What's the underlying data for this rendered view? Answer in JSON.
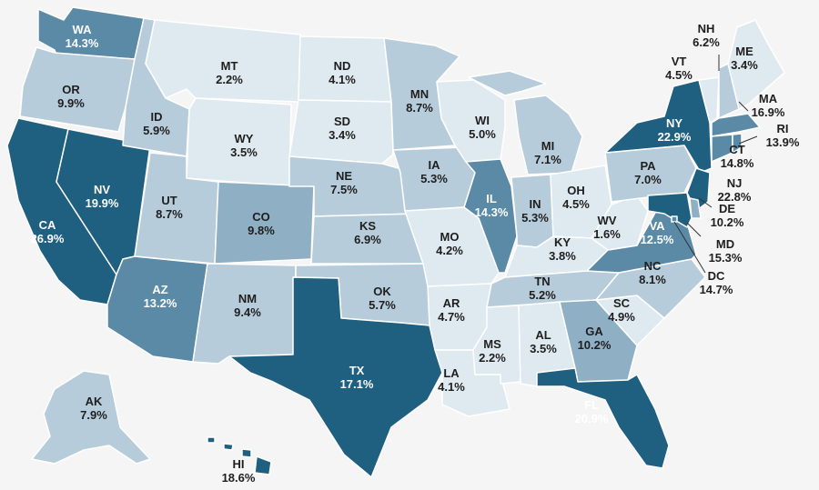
{
  "legend_colors": {
    "lightest": "#dfe9f0",
    "light": "#b7ccda",
    "medium": "#8fafc4",
    "mid_dark": "#5b8aa6",
    "dark": "#1f5f80"
  },
  "states": {
    "WA": {
      "abbr": "WA",
      "pct": "14.3%",
      "shade": "mid_dark"
    },
    "OR": {
      "abbr": "OR",
      "pct": "9.9%",
      "shade": "light"
    },
    "CA": {
      "abbr": "CA",
      "pct": "26.9%",
      "shade": "dark"
    },
    "NV": {
      "abbr": "NV",
      "pct": "19.9%",
      "shade": "dark"
    },
    "ID": {
      "abbr": "ID",
      "pct": "5.9%",
      "shade": "light"
    },
    "MT": {
      "abbr": "MT",
      "pct": "2.2%",
      "shade": "lightest"
    },
    "WY": {
      "abbr": "WY",
      "pct": "3.5%",
      "shade": "lightest"
    },
    "UT": {
      "abbr": "UT",
      "pct": "8.7%",
      "shade": "light"
    },
    "AZ": {
      "abbr": "AZ",
      "pct": "13.2%",
      "shade": "mid_dark"
    },
    "CO": {
      "abbr": "CO",
      "pct": "9.8%",
      "shade": "medium"
    },
    "NM": {
      "abbr": "NM",
      "pct": "9.4%",
      "shade": "light"
    },
    "ND": {
      "abbr": "ND",
      "pct": "4.1%",
      "shade": "lightest"
    },
    "SD": {
      "abbr": "SD",
      "pct": "3.4%",
      "shade": "lightest"
    },
    "NE": {
      "abbr": "NE",
      "pct": "7.5%",
      "shade": "light"
    },
    "KS": {
      "abbr": "KS",
      "pct": "6.9%",
      "shade": "light"
    },
    "OK": {
      "abbr": "OK",
      "pct": "5.7%",
      "shade": "light"
    },
    "TX": {
      "abbr": "TX",
      "pct": "17.1%",
      "shade": "dark"
    },
    "MN": {
      "abbr": "MN",
      "pct": "8.7%",
      "shade": "light"
    },
    "IA": {
      "abbr": "IA",
      "pct": "5.3%",
      "shade": "light"
    },
    "MO": {
      "abbr": "MO",
      "pct": "4.2%",
      "shade": "lightest"
    },
    "AR": {
      "abbr": "AR",
      "pct": "4.7%",
      "shade": "lightest"
    },
    "LA": {
      "abbr": "LA",
      "pct": "4.1%",
      "shade": "lightest"
    },
    "WI": {
      "abbr": "WI",
      "pct": "5.0%",
      "shade": "lightest"
    },
    "IL": {
      "abbr": "IL",
      "pct": "14.3%",
      "shade": "mid_dark"
    },
    "MI": {
      "abbr": "MI",
      "pct": "7.1%",
      "shade": "light"
    },
    "IN": {
      "abbr": "IN",
      "pct": "5.3%",
      "shade": "light"
    },
    "OH": {
      "abbr": "OH",
      "pct": "4.5%",
      "shade": "lightest"
    },
    "KY": {
      "abbr": "KY",
      "pct": "3.8%",
      "shade": "lightest"
    },
    "TN": {
      "abbr": "TN",
      "pct": "5.2%",
      "shade": "light"
    },
    "MS": {
      "abbr": "MS",
      "pct": "2.2%",
      "shade": "lightest"
    },
    "AL": {
      "abbr": "AL",
      "pct": "3.5%",
      "shade": "lightest"
    },
    "GA": {
      "abbr": "GA",
      "pct": "10.2%",
      "shade": "medium"
    },
    "FL": {
      "abbr": "FL",
      "pct": "20.9%",
      "shade": "dark"
    },
    "SC": {
      "abbr": "SC",
      "pct": "4.9%",
      "shade": "lightest"
    },
    "NC": {
      "abbr": "NC",
      "pct": "8.1%",
      "shade": "light"
    },
    "VA": {
      "abbr": "VA",
      "pct": "12.5%",
      "shade": "mid_dark"
    },
    "WV": {
      "abbr": "WV",
      "pct": "1.6%",
      "shade": "lightest"
    },
    "PA": {
      "abbr": "PA",
      "pct": "7.0%",
      "shade": "light"
    },
    "NY": {
      "abbr": "NY",
      "pct": "22.9%",
      "shade": "dark"
    },
    "VT": {
      "abbr": "VT",
      "pct": "4.5%",
      "shade": "lightest"
    },
    "NH": {
      "abbr": "NH",
      "pct": "6.2%",
      "shade": "light"
    },
    "ME": {
      "abbr": "ME",
      "pct": "3.4%",
      "shade": "lightest"
    },
    "MA": {
      "abbr": "MA",
      "pct": "16.9%",
      "shade": "mid_dark"
    },
    "RI": {
      "abbr": "RI",
      "pct": "13.9%",
      "shade": "mid_dark"
    },
    "CT": {
      "abbr": "CT",
      "pct": "14.8%",
      "shade": "mid_dark"
    },
    "NJ": {
      "abbr": "NJ",
      "pct": "22.8%",
      "shade": "dark"
    },
    "DE": {
      "abbr": "DE",
      "pct": "10.2%",
      "shade": "medium"
    },
    "MD": {
      "abbr": "MD",
      "pct": "15.3%",
      "shade": "dark"
    },
    "DC": {
      "abbr": "DC",
      "pct": "14.7%",
      "shade": "mid_dark"
    },
    "AK": {
      "abbr": "AK",
      "pct": "7.9%",
      "shade": "light"
    },
    "HI": {
      "abbr": "HI",
      "pct": "18.6%",
      "shade": "dark"
    }
  }
}
